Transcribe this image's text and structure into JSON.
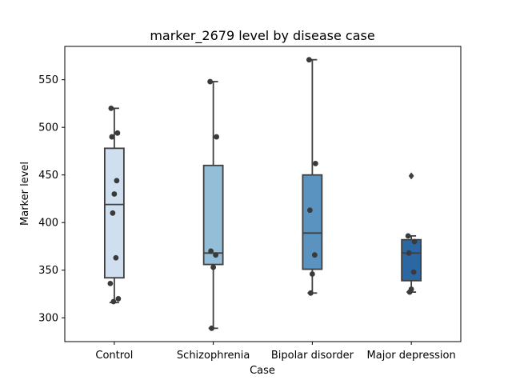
{
  "chart_data": {
    "type": "box",
    "title": "marker_2679 level by disease case",
    "xlabel": "Case",
    "ylabel": "Marker level",
    "ylim": [
      275,
      585
    ],
    "yticks": [
      300,
      350,
      400,
      450,
      500,
      550
    ],
    "categories": [
      "Control",
      "Schizophrenia",
      "Bipolar disorder",
      "Major depression"
    ],
    "boxes": [
      {
        "category": "Control",
        "whisker_low": 316,
        "q1": 342,
        "median": 419,
        "q3": 478,
        "whisker_high": 520,
        "outliers": [],
        "color": "#d0dff0",
        "points": [
          520,
          494,
          490,
          444,
          430,
          410,
          363,
          336,
          320,
          317
        ]
      },
      {
        "category": "Schizophrenia",
        "whisker_low": 289,
        "q1": 356,
        "median": 368,
        "q3": 460,
        "whisker_high": 548,
        "outliers": [],
        "color": "#94bdd8",
        "points": [
          548,
          490,
          370,
          366,
          353,
          289
        ]
      },
      {
        "category": "Bipolar disorder",
        "whisker_low": 326,
        "q1": 351,
        "median": 389,
        "q3": 450,
        "whisker_high": 571,
        "outliers": [],
        "color": "#5a93bf",
        "points": [
          571,
          462,
          413,
          366,
          346,
          326
        ]
      },
      {
        "category": "Major depression",
        "whisker_low": 327,
        "q1": 339,
        "median": 368,
        "q3": 382,
        "whisker_high": 386,
        "outliers": [
          449
        ],
        "color": "#2b67a2",
        "points": [
          386,
          380,
          368,
          348,
          330,
          327
        ]
      }
    ],
    "point_color": "#3a3a3a",
    "line_color": "#3f3f3f"
  }
}
